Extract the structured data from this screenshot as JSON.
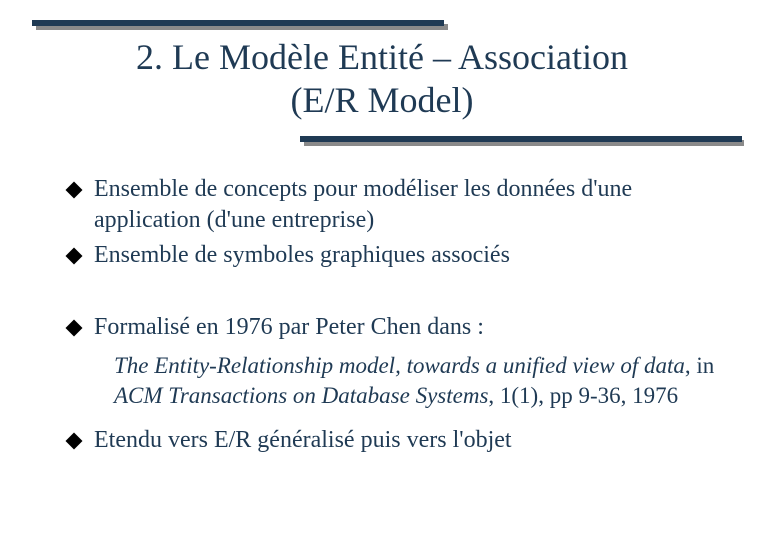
{
  "colors": {
    "bar": "#1f3a54",
    "shadow": "#8a8a8a",
    "text": "#1f3a54",
    "bullet": "#000000",
    "background": "#ffffff"
  },
  "title": {
    "line1": "2. Le Modèle Entité – Association",
    "line2": "(E/R Model)",
    "fontsize": 36
  },
  "body_fontsize": 24,
  "bullets": [
    "Ensemble de concepts pour modéliser les données d'une application (d'une entreprise)",
    "Ensemble de symboles graphiques associés",
    "Formalisé en 1976 par Peter Chen dans :",
    "Etendu vers E/R généralisé puis vers l'objet"
  ],
  "citation": {
    "italic1": "The Entity-Relationship model, towards a unified view of data",
    "roman1": ", in ",
    "italic2": "ACM Transactions on Database Systems",
    "roman2": ", 1(1), pp 9-36, 1976"
  }
}
